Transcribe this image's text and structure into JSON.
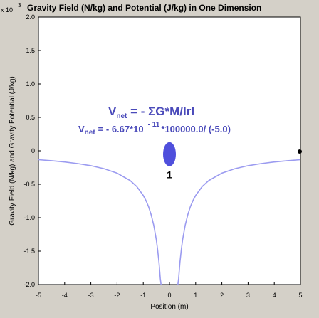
{
  "chart_data": {
    "type": "line",
    "title": "Gravity Field (N/kg) and Potential (J/kg) in One Dimension",
    "xlabel": "Position (m)",
    "ylabel": "Gravity Field (N/kg) and Gravity Potential (J/kg)",
    "y_exponent_base": "x 10",
    "y_exponent_power": "3",
    "xlim": [
      -5,
      5
    ],
    "ylim": [
      -2.0,
      2.0
    ],
    "x_ticks": [
      "-5",
      "-4",
      "-3",
      "-2",
      "-1",
      "0",
      "1",
      "2",
      "3",
      "4",
      "5"
    ],
    "y_ticks": [
      "-2.0",
      "-1.5",
      "-1.0",
      "-0.5",
      "0",
      "0.5",
      "1.0",
      "1.5",
      "2.0"
    ],
    "grid": false,
    "series": [
      {
        "color": "#9b9bf0",
        "x": [
          -5,
          -4.5,
          -4,
          -3.5,
          -3,
          -2.5,
          -2,
          -1.5,
          -1.25,
          -1,
          -0.9,
          -0.8,
          -0.7,
          -0.6,
          -0.5,
          -0.45,
          -0.4,
          -0.35,
          0.35,
          0.4,
          0.45,
          0.5,
          0.6,
          0.7,
          0.8,
          0.9,
          1,
          1.25,
          1.5,
          2,
          2.5,
          3,
          3.5,
          4,
          4.5,
          5
        ],
        "y": [
          -0.133,
          -0.148,
          -0.167,
          -0.191,
          -0.222,
          -0.267,
          -0.334,
          -0.445,
          -0.534,
          -0.667,
          -0.741,
          -0.834,
          -0.953,
          -1.112,
          -1.334,
          -1.482,
          -1.668,
          -1.906,
          -1.906,
          -1.668,
          -1.482,
          -1.334,
          -1.112,
          -0.953,
          -0.834,
          -0.741,
          -0.667,
          -0.534,
          -0.445,
          -0.334,
          -0.267,
          -0.222,
          -0.191,
          -0.167,
          -0.148,
          -0.133
        ]
      }
    ],
    "mass": {
      "label": "1",
      "x": 0,
      "y": -0.05,
      "color": "#4f4fdc"
    },
    "equation_main": {
      "v": "V",
      "sub": "net",
      "rest": " = - ΣG*M/IrI"
    },
    "equation_values": {
      "v": "V",
      "sub": "net",
      "rest1": "= - 6.67*10",
      "exp": "- 11",
      "rest2": "*100000.0/ (-5.0)"
    },
    "colors": {
      "background": "#d4d0c8",
      "plot_background": "#ffffff",
      "curve": "#9b9bf0",
      "text_accent": "#4a4aba"
    }
  }
}
